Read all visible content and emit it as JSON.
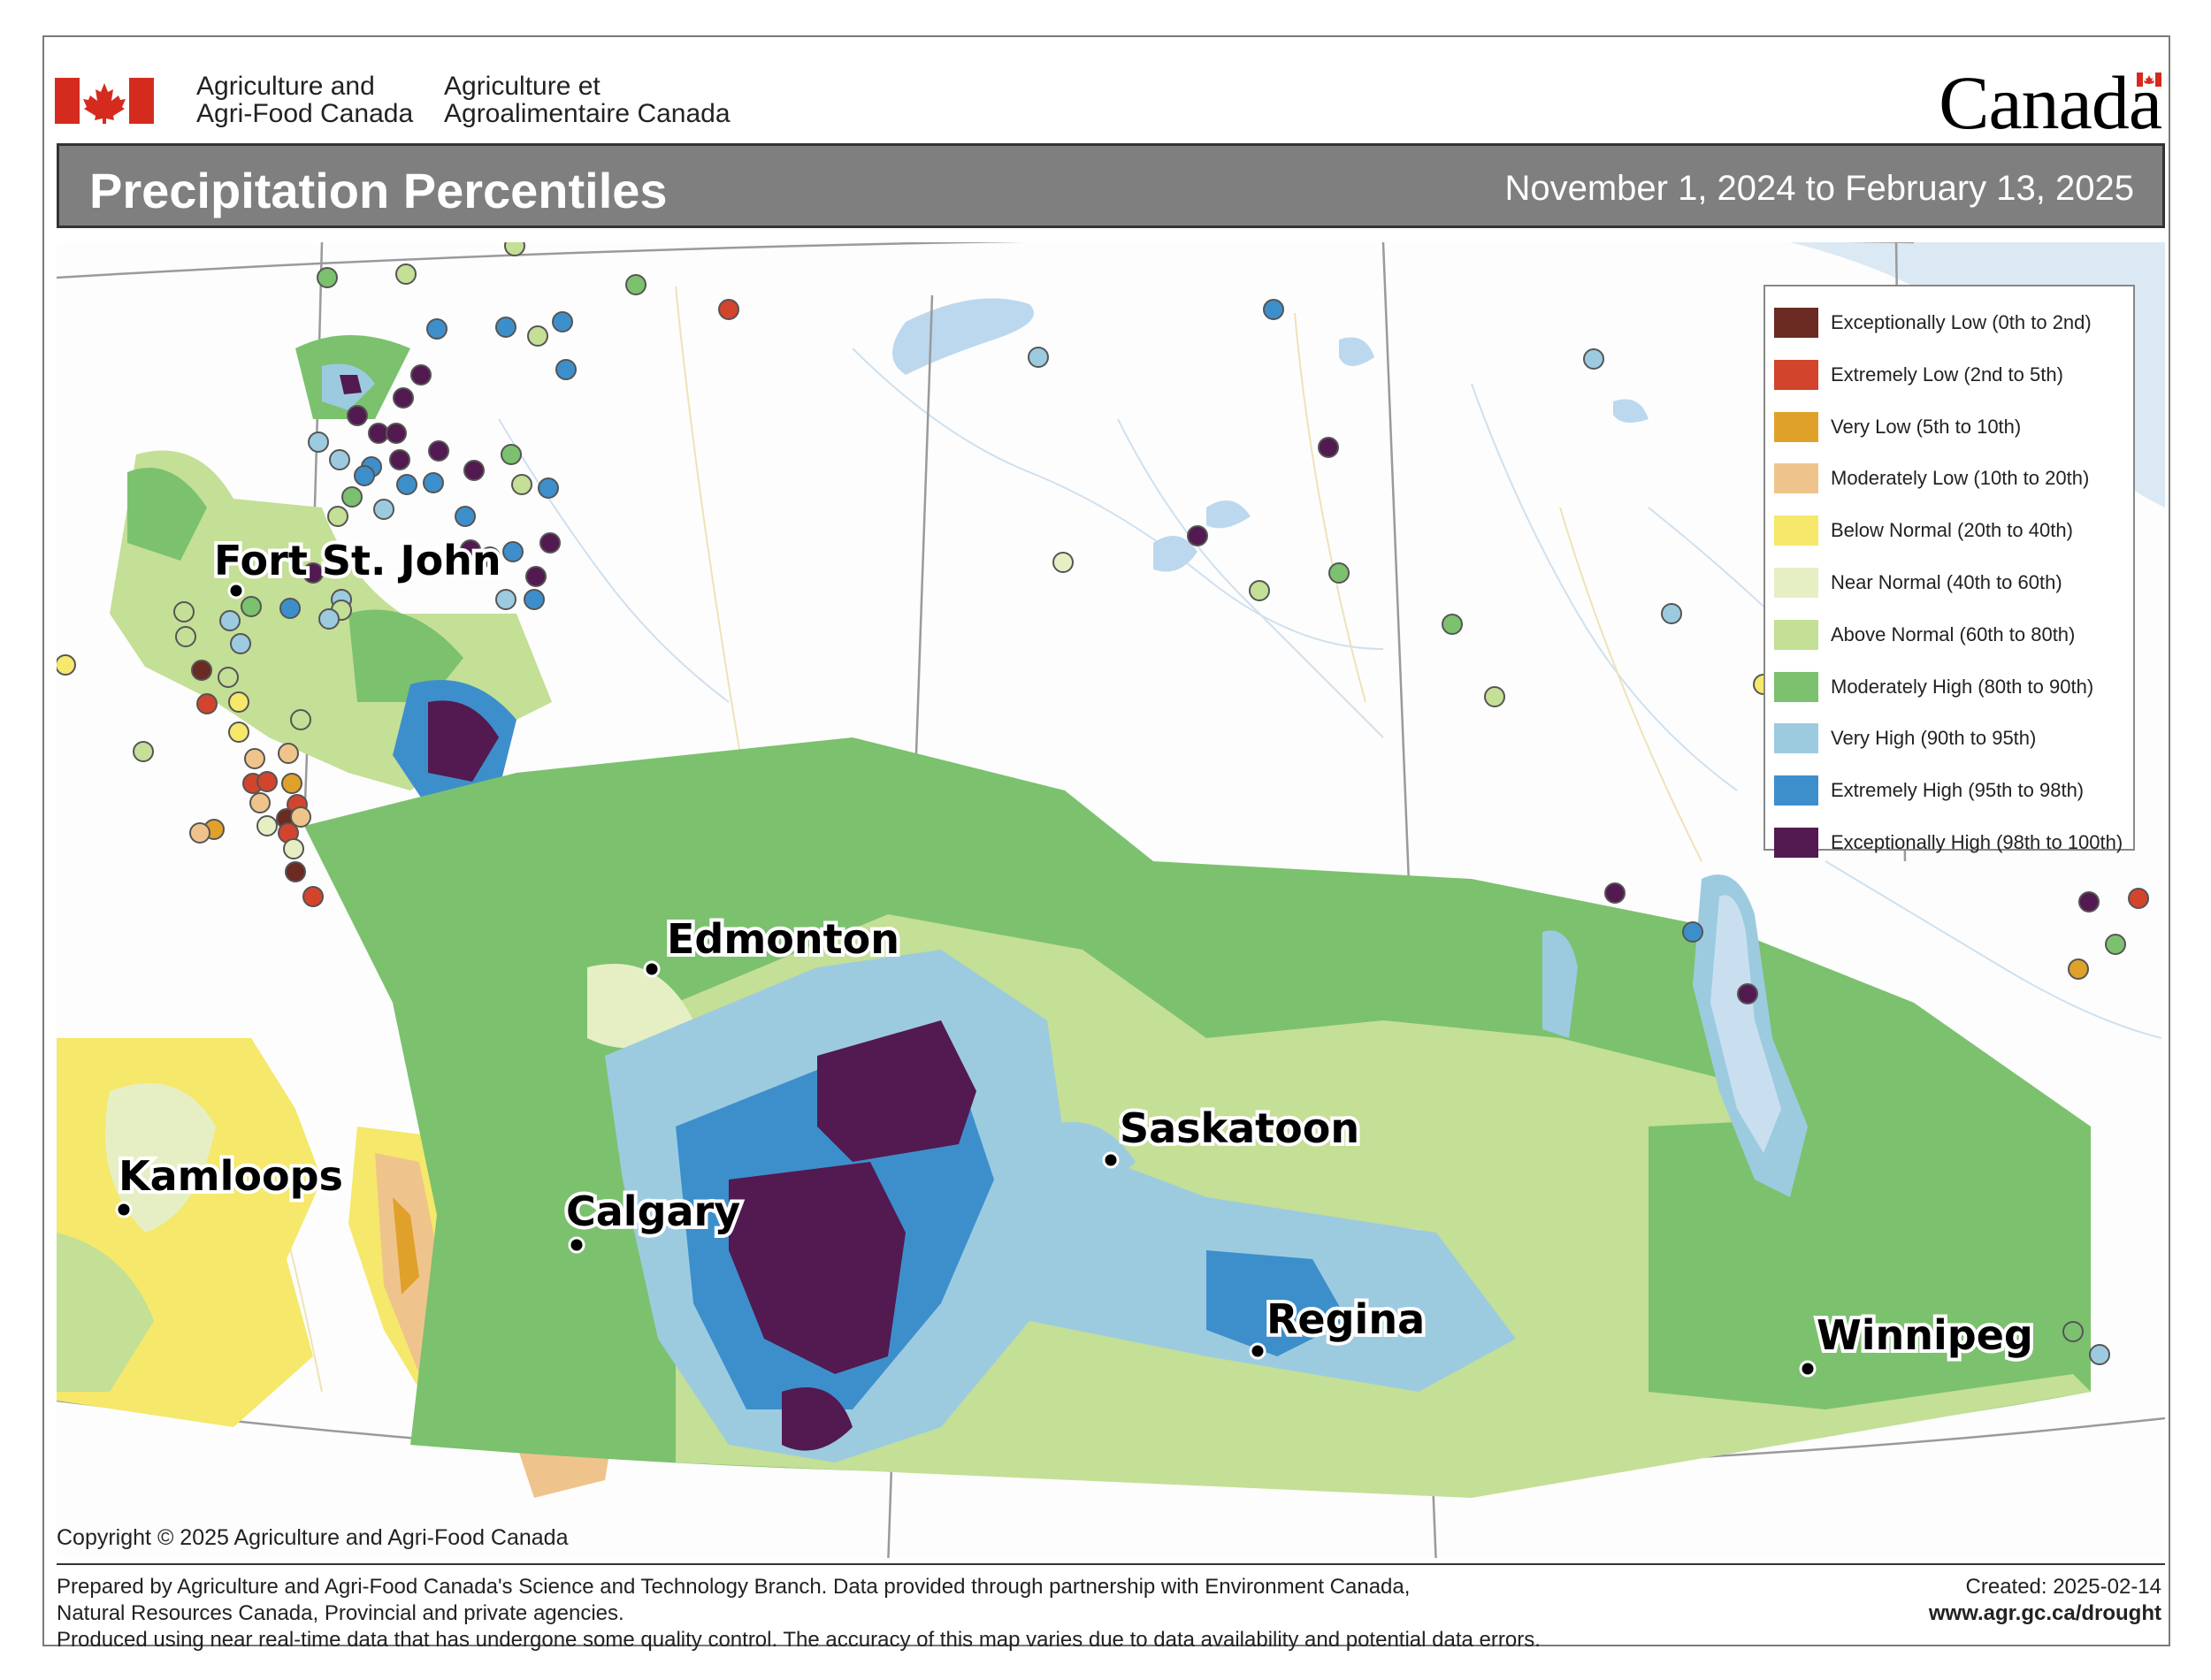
{
  "header": {
    "department_en_line1": "Agriculture and",
    "department_en_line2": "Agri-Food Canada",
    "department_fr_line1": "Agriculture et",
    "department_fr_line2": "Agroalimentaire Canada",
    "wordmark": "Canada"
  },
  "title": "Precipitation Percentiles",
  "date_range": "November 1, 2024 to February 13, 2025",
  "legend": [
    {
      "label": "Exceptionally Low (0th to 2nd)",
      "color": "#6b2a22"
    },
    {
      "label": "Extremely Low (2nd to 5th)",
      "color": "#d2442c"
    },
    {
      "label": "Very Low (5th to 10th)",
      "color": "#e0a12a"
    },
    {
      "label": "Moderately Low (10th to 20th)",
      "color": "#efc48c"
    },
    {
      "label": "Below Normal (20th to 40th)",
      "color": "#f5e86a"
    },
    {
      "label": "Near Normal (40th to 60th)",
      "color": "#e6efc4"
    },
    {
      "label": "Above Normal (60th to 80th)",
      "color": "#c4df96"
    },
    {
      "label": "Moderately High (80th to 90th)",
      "color": "#7cc16e"
    },
    {
      "label": "Very High (90th to 95th)",
      "color": "#9ccbe0"
    },
    {
      "label": "Extremely High (95th to 98th)",
      "color": "#3d8fcc"
    },
    {
      "label": "Exceptionally High (98th to 100th)",
      "color": "#521a50"
    }
  ],
  "cities": [
    "Fort St. John",
    "Edmonton",
    "Kamloops",
    "Calgary",
    "Saskatoon",
    "Regina",
    "Winnipeg"
  ],
  "copyright": "Copyright © 2025 Agriculture and Agri-Food Canada",
  "footer": {
    "line1": "Prepared by Agriculture and Agri-Food Canada's Science and Technology Branch. Data provided through partnership with Environment Canada,",
    "line2": "Natural Resources Canada, Provincial and private agencies.",
    "line3": "Produced using near real-time data that has undergone some quality control. The accuracy of this map varies due to data availability and potential data errors.",
    "created": "Created: 2025-02-14",
    "url": "www.agr.gc.ca/drought"
  }
}
